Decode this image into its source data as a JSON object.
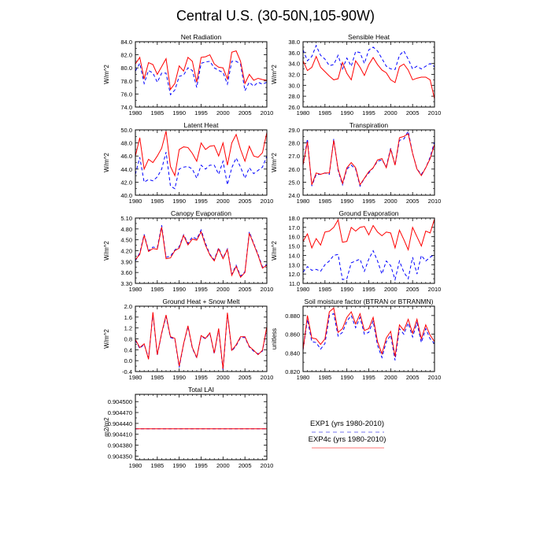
{
  "title": "Central U.S. (30-50N,105-90W)",
  "legend": [
    {
      "label": "EXP1 (yrs 1980-2010)",
      "color": "#0000ff",
      "dash": true
    },
    {
      "label": "EXP4c (yrs 1980-2010)",
      "color": "#ff0000",
      "dash": false
    }
  ],
  "chart_data": [
    {
      "type": "line",
      "title": "Net Radiation",
      "ylabel": "W/m^2",
      "xlim": [
        1980,
        2010
      ],
      "xticks": [
        1980,
        1985,
        1990,
        1995,
        2000,
        2005,
        2010
      ],
      "ylim": [
        74,
        84
      ],
      "yticks": [
        "74.0",
        "76.0",
        "78.0",
        "80.0",
        "82.0",
        "84.0"
      ],
      "x_start": 1980,
      "series": [
        {
          "name": "EXP1 (yrs 1980-2010)",
          "color": "#0000ff",
          "dash": true,
          "values": [
            79.5,
            80.7,
            77.6,
            79.6,
            79.2,
            77.8,
            79.2,
            79.2,
            75.9,
            76.6,
            78.7,
            78.9,
            80.0,
            79.6,
            77.0,
            80.7,
            80.9,
            81.0,
            80.0,
            79.6,
            79.3,
            77.5,
            81.0,
            81.0,
            80.6,
            76.5,
            77.8,
            77.2,
            77.8,
            77.5,
            77.8
          ]
        },
        {
          "name": "EXP4c (yrs 1980-2010)",
          "color": "#ff0000",
          "dash": false,
          "values": [
            80.6,
            81.6,
            78.3,
            80.8,
            80.5,
            79.0,
            80.2,
            81.4,
            76.7,
            77.6,
            80.3,
            79.5,
            81.6,
            81.0,
            77.8,
            81.6,
            81.7,
            82.0,
            80.6,
            80.1,
            80.0,
            78.3,
            82.4,
            82.6,
            81.0,
            77.6,
            79.0,
            78.1,
            78.4,
            78.2,
            78.1
          ]
        }
      ]
    },
    {
      "type": "line",
      "title": "Sensible Heat",
      "ylabel": "W/m^2",
      "xlim": [
        1980,
        2010
      ],
      "xticks": [
        1980,
        1985,
        1990,
        1995,
        2000,
        2005,
        2010
      ],
      "ylim": [
        26,
        38
      ],
      "yticks": [
        "26.0",
        "28.0",
        "30.0",
        "32.0",
        "34.0",
        "36.0",
        "38.0"
      ],
      "x_start": 1980,
      "series": [
        {
          "name": "EXP1 (yrs 1980-2010)",
          "color": "#0000ff",
          "dash": true,
          "values": [
            36.5,
            34.5,
            35.3,
            37.3,
            35.5,
            34.8,
            33.6,
            33.8,
            35.5,
            33.0,
            35.0,
            33.5,
            36.2,
            36.0,
            34.0,
            36.5,
            37.0,
            36.3,
            34.9,
            33.5,
            33.0,
            32.9,
            35.5,
            36.3,
            34.8,
            33.0,
            33.5,
            33.0,
            33.5,
            34.0,
            33.4
          ]
        },
        {
          "name": "EXP4c (yrs 1980-2010)",
          "color": "#ff0000",
          "dash": false,
          "values": [
            34.5,
            32.7,
            33.3,
            35.3,
            33.3,
            32.5,
            31.7,
            31.0,
            31.2,
            34.2,
            32.2,
            31.0,
            34.5,
            33.3,
            31.8,
            33.8,
            35.1,
            33.8,
            32.8,
            32.3,
            31.0,
            30.5,
            33.4,
            33.9,
            32.8,
            31.0,
            31.3,
            31.5,
            31.5,
            31.0,
            27.5
          ]
        }
      ]
    },
    {
      "type": "line",
      "title": "Latent Heat",
      "ylabel": "W/m^2",
      "xlim": [
        1980,
        2010
      ],
      "xticks": [
        1980,
        1985,
        1990,
        1995,
        2000,
        2005,
        2010
      ],
      "ylim": [
        40,
        50
      ],
      "yticks": [
        "40.0",
        "42.0",
        "44.0",
        "46.0",
        "48.0",
        "50.0"
      ],
      "x_start": 1980,
      "series": [
        {
          "name": "EXP1 (yrs 1980-2010)",
          "color": "#0000ff",
          "dash": true,
          "values": [
            43.2,
            45.8,
            42.0,
            42.4,
            42.2,
            42.8,
            44.0,
            46.6,
            41.4,
            41.0,
            44.0,
            44.3,
            44.4,
            44.0,
            42.6,
            44.6,
            44.0,
            44.6,
            44.6,
            43.2,
            45.2,
            41.6,
            44.2,
            45.7,
            44.3,
            42.6,
            44.2,
            43.3,
            43.8,
            44.3,
            46.0
          ]
        },
        {
          "name": "EXP4c (yrs 1980-2010)",
          "color": "#ff0000",
          "dash": false,
          "values": [
            46.0,
            48.8,
            44.0,
            45.5,
            45.0,
            46.0,
            47.2,
            49.8,
            44.4,
            43.0,
            47.0,
            47.4,
            47.3,
            46.4,
            45.2,
            48.0,
            47.0,
            47.5,
            47.6,
            46.0,
            48.0,
            44.6,
            48.0,
            49.3,
            47.0,
            45.2,
            47.5,
            46.0,
            45.8,
            46.5,
            49.6
          ]
        }
      ]
    },
    {
      "type": "line",
      "title": "Transpiration",
      "ylabel": "W/m^2",
      "xlim": [
        1980,
        2010
      ],
      "xticks": [
        1980,
        1985,
        1990,
        1995,
        2000,
        2005,
        2010
      ],
      "ylim": [
        24,
        29
      ],
      "yticks": [
        "24.0",
        "25.0",
        "26.0",
        "27.0",
        "28.0",
        "29.0"
      ],
      "x_start": 1980,
      "series": [
        {
          "name": "EXP1 (yrs 1980-2010)",
          "color": "#0000ff",
          "dash": true,
          "values": [
            26.3,
            28.3,
            24.7,
            25.6,
            25.6,
            25.7,
            25.6,
            28.3,
            25.9,
            24.8,
            26.0,
            26.3,
            26.0,
            24.7,
            25.3,
            25.7,
            26.1,
            26.6,
            26.7,
            26.2,
            27.6,
            26.3,
            28.2,
            28.3,
            28.9,
            27.2,
            26.0,
            25.6,
            26.1,
            26.9,
            28.1
          ]
        },
        {
          "name": "EXP4c (yrs 1980-2010)",
          "color": "#ff0000",
          "dash": false,
          "values": [
            26.3,
            28.1,
            24.8,
            25.7,
            25.6,
            25.7,
            25.7,
            28.2,
            26.0,
            24.9,
            26.1,
            26.5,
            26.1,
            24.8,
            25.3,
            25.8,
            26.1,
            26.7,
            26.8,
            26.1,
            27.5,
            26.3,
            28.4,
            28.5,
            28.7,
            27.2,
            26.0,
            25.5,
            26.1,
            26.8,
            27.9
          ]
        }
      ]
    },
    {
      "type": "line",
      "title": "Canopy Evaporation",
      "ylabel": "W/m^2",
      "xlim": [
        1980,
        2010
      ],
      "xticks": [
        1980,
        1985,
        1990,
        1995,
        2000,
        2005,
        2010
      ],
      "ylim": [
        3.3,
        5.1
      ],
      "yticks": [
        "3.30",
        "3.60",
        "3.90",
        "4.20",
        "4.50",
        "4.80",
        "5.10"
      ],
      "x_start": 1980,
      "series": [
        {
          "name": "EXP1 (yrs 1980-2010)",
          "color": "#0000ff",
          "dash": true,
          "values": [
            3.92,
            4.14,
            4.65,
            4.2,
            4.3,
            4.28,
            4.9,
            4.02,
            4.05,
            4.22,
            4.31,
            4.64,
            4.4,
            4.58,
            4.52,
            4.77,
            4.4,
            4.1,
            3.95,
            4.28,
            4.0,
            4.25,
            3.55,
            3.8,
            3.5,
            3.62,
            4.72,
            4.4,
            4.1,
            3.75,
            3.82
          ]
        },
        {
          "name": "EXP4c (yrs 1980-2010)",
          "color": "#ff0000",
          "dash": false,
          "values": [
            3.95,
            4.1,
            4.62,
            4.18,
            4.26,
            4.24,
            4.85,
            3.98,
            4.0,
            4.2,
            4.27,
            4.62,
            4.36,
            4.52,
            4.49,
            4.72,
            4.35,
            4.08,
            3.92,
            4.25,
            3.98,
            4.23,
            3.52,
            3.77,
            3.47,
            3.6,
            4.68,
            4.38,
            4.07,
            3.72,
            3.8
          ]
        }
      ]
    },
    {
      "type": "line",
      "title": "Ground Evaporation",
      "ylabel": "W/m^2",
      "xlim": [
        1980,
        2010
      ],
      "xticks": [
        1980,
        1985,
        1990,
        1995,
        2000,
        2005,
        2010
      ],
      "ylim": [
        11,
        18
      ],
      "yticks": [
        "11.0",
        "12.0",
        "13.0",
        "14.0",
        "15.0",
        "16.0",
        "17.0",
        "18.0"
      ],
      "x_start": 1980,
      "series": [
        {
          "name": "EXP1 (yrs 1980-2010)",
          "color": "#0000ff",
          "dash": true,
          "values": [
            12.2,
            12.8,
            12.4,
            12.5,
            12.3,
            13.0,
            13.4,
            14.0,
            14.1,
            11.4,
            11.5,
            13.2,
            13.4,
            13.6,
            12.3,
            13.6,
            14.5,
            13.4,
            12.0,
            13.4,
            12.9,
            11.4,
            13.4,
            12.2,
            11.5,
            13.8,
            12.0,
            14.0,
            13.4,
            13.8,
            14.1
          ]
        },
        {
          "name": "EXP4c (yrs 1980-2010)",
          "color": "#ff0000",
          "dash": false,
          "values": [
            15.5,
            16.3,
            14.8,
            15.8,
            15.1,
            16.5,
            16.6,
            17.0,
            17.8,
            15.4,
            15.5,
            17.0,
            16.6,
            17.0,
            17.1,
            16.2,
            17.2,
            16.5,
            16.1,
            16.5,
            16.4,
            14.8,
            16.7,
            15.7,
            14.6,
            17.0,
            16.0,
            15.0,
            16.6,
            16.4,
            17.9
          ]
        }
      ]
    },
    {
      "type": "line",
      "title": "Ground Heat + Snow Melt",
      "ylabel": "W/m^2",
      "xlim": [
        1980,
        2010
      ],
      "xticks": [
        1980,
        1985,
        1990,
        1995,
        2000,
        2005,
        2010
      ],
      "ylim": [
        -0.4,
        2.0
      ],
      "yticks": [
        "-0.4",
        "0.0",
        "0.4",
        "0.8",
        "1.2",
        "1.6",
        "2.0"
      ],
      "x_start": 1980,
      "series": [
        {
          "name": "EXP1 (yrs 1980-2010)",
          "color": "#0000ff",
          "dash": true,
          "values": [
            0.75,
            0.45,
            0.6,
            0.1,
            1.72,
            0.2,
            1.0,
            1.62,
            0.85,
            0.8,
            -0.25,
            0.6,
            1.25,
            0.45,
            0.1,
            0.9,
            0.8,
            1.0,
            0.25,
            1.15,
            -0.35,
            1.72,
            0.35,
            0.55,
            0.85,
            0.85,
            0.5,
            0.35,
            0.25,
            0.35,
            1.2
          ]
        },
        {
          "name": "EXP4c (yrs 1980-2010)",
          "color": "#ff0000",
          "dash": false,
          "values": [
            0.78,
            0.48,
            0.62,
            0.05,
            1.78,
            0.22,
            1.02,
            1.68,
            0.88,
            0.82,
            -0.2,
            0.62,
            1.28,
            0.48,
            0.12,
            0.92,
            0.82,
            1.02,
            0.28,
            1.18,
            -0.3,
            1.76,
            0.38,
            0.58,
            0.88,
            0.88,
            0.52,
            0.38,
            0.22,
            0.38,
            1.25
          ]
        }
      ]
    },
    {
      "type": "line",
      "title": "Soil moisture factor (BTRAN or BTRANMN)",
      "ylabel": "unitless",
      "xlim": [
        1980,
        2010
      ],
      "xticks": [
        1980,
        1985,
        1990,
        1995,
        2000,
        2005,
        2010
      ],
      "ylim": [
        0.82,
        0.89
      ],
      "yticks": [
        "0.820",
        "0.840",
        "0.860",
        "0.880"
      ],
      "x_start": 1980,
      "series": [
        {
          "name": "EXP1 (yrs 1980-2010)",
          "color": "#0000ff",
          "dash": true,
          "values": [
            0.843,
            0.876,
            0.852,
            0.851,
            0.844,
            0.85,
            0.88,
            0.882,
            0.858,
            0.862,
            0.874,
            0.88,
            0.867,
            0.878,
            0.86,
            0.862,
            0.874,
            0.848,
            0.835,
            0.852,
            0.859,
            0.832,
            0.866,
            0.86,
            0.872,
            0.857,
            0.872,
            0.851,
            0.866,
            0.855,
            0.85
          ]
        },
        {
          "name": "EXP4c (yrs 1980-2010)",
          "color": "#ff0000",
          "dash": false,
          "values": [
            0.843,
            0.88,
            0.856,
            0.855,
            0.849,
            0.855,
            0.884,
            0.888,
            0.862,
            0.866,
            0.878,
            0.884,
            0.871,
            0.882,
            0.864,
            0.866,
            0.878,
            0.852,
            0.839,
            0.856,
            0.863,
            0.836,
            0.87,
            0.864,
            0.876,
            0.861,
            0.876,
            0.855,
            0.87,
            0.859,
            0.852
          ]
        }
      ]
    },
    {
      "type": "line",
      "title": "Total LAI",
      "ylabel": "m2/m2",
      "xlim": [
        1980,
        2010
      ],
      "xticks": [
        1980,
        1985,
        1990,
        1995,
        2000,
        2005,
        2010
      ],
      "ylim": [
        0.90434,
        0.90452
      ],
      "yticks": [
        "0.904350",
        "0.904380",
        "0.904410",
        "0.904440",
        "0.904470",
        "0.904500"
      ],
      "x_start": 1980,
      "series": [
        {
          "name": "EXP1 (yrs 1980-2010)",
          "color": "#0000ff",
          "dash": true,
          "values": [
            0.904425,
            0.904425,
            0.904425,
            0.904425,
            0.904425,
            0.904425,
            0.904425,
            0.904425,
            0.904425,
            0.904425,
            0.904425,
            0.904425,
            0.904425,
            0.904425,
            0.904425,
            0.904425,
            0.904425,
            0.904425,
            0.904425,
            0.904425,
            0.904425,
            0.904425,
            0.904425,
            0.904425,
            0.904425,
            0.904425,
            0.904425,
            0.904425,
            0.904425,
            0.904425,
            0.904425
          ]
        },
        {
          "name": "EXP4c (yrs 1980-2010)",
          "color": "#ff0000",
          "dash": false,
          "values": [
            0.904425,
            0.904425,
            0.904425,
            0.904425,
            0.904425,
            0.904425,
            0.904425,
            0.904425,
            0.904425,
            0.904425,
            0.904425,
            0.904425,
            0.904425,
            0.904425,
            0.904425,
            0.904425,
            0.904425,
            0.904425,
            0.904425,
            0.904425,
            0.904425,
            0.904425,
            0.904425,
            0.904425,
            0.904425,
            0.904425,
            0.904425,
            0.904425,
            0.904425,
            0.904425,
            0.904425
          ]
        }
      ]
    }
  ]
}
